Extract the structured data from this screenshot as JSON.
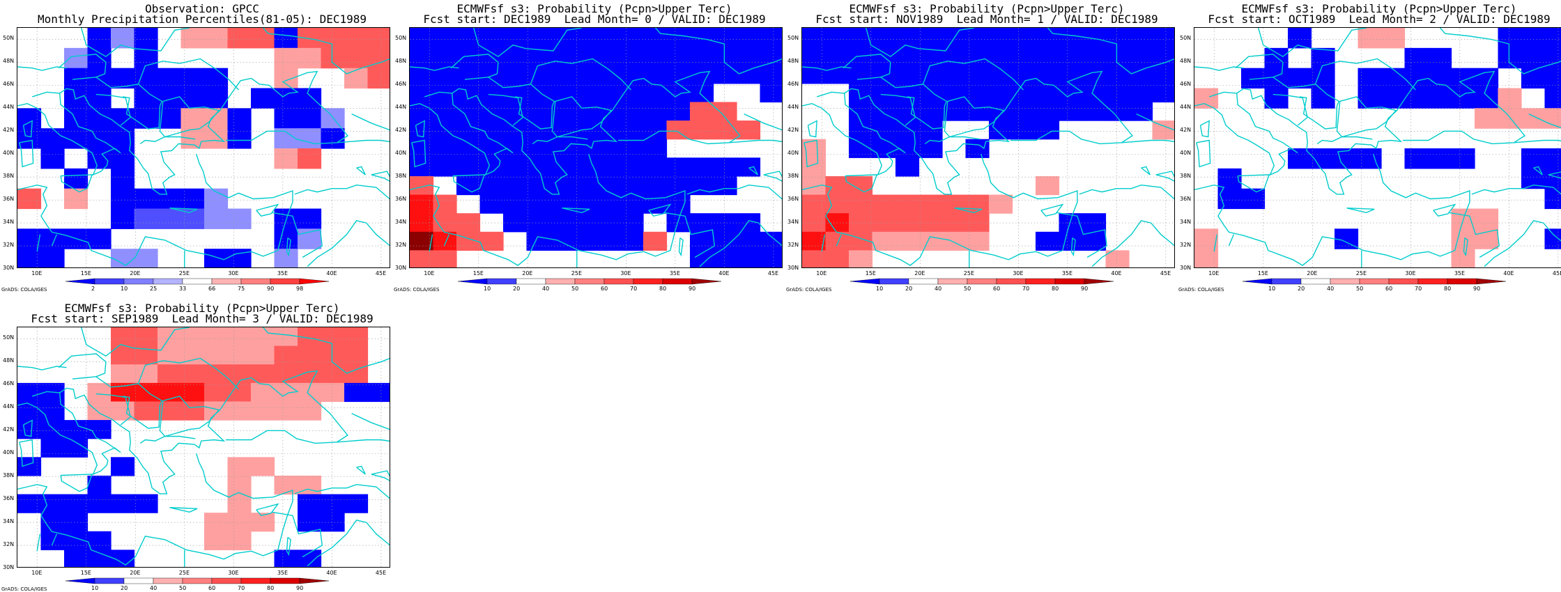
{
  "panels": [
    {
      "title1": "Observation: GPCC",
      "title2": "Monthly Precipitation Percentiles(81-05): DEC1989",
      "colorbar_labels": [
        "2",
        "10",
        "25",
        "33",
        "66",
        "75",
        "90",
        "98"
      ],
      "colorbar_colors": [
        "#0000ff",
        "#4040ff",
        "#8080ff",
        "#b4b4ff",
        "#ffffff",
        "#ffb4b4",
        "#ff8080",
        "#ff4040",
        "#ff0000"
      ]
    },
    {
      "title1": "ECMWFsf s3: Probability (Pcpn>Upper Terc)",
      "title2": "Fcst start: DEC1989  Lead Month= 0 / VALID: DEC1989",
      "colorbar_labels": [
        "10",
        "20",
        "40",
        "50",
        "60",
        "70",
        "80",
        "90"
      ],
      "colorbar_colors": [
        "#0000ff",
        "#4040ff",
        "#ffffff",
        "#ffb0b0",
        "#ff8080",
        "#ff5050",
        "#ff2020",
        "#dd0000",
        "#a00000"
      ]
    },
    {
      "title1": "ECMWFsf s3: Probability (Pcpn>Upper Terc)",
      "title2": "Fcst start: NOV1989  Lead Month= 1 / VALID: DEC1989",
      "colorbar_labels": [
        "10",
        "20",
        "40",
        "50",
        "60",
        "70",
        "80",
        "90"
      ],
      "colorbar_colors": [
        "#0000ff",
        "#4040ff",
        "#ffffff",
        "#ffb0b0",
        "#ff8080",
        "#ff5050",
        "#ff2020",
        "#dd0000",
        "#a00000"
      ]
    },
    {
      "title1": "ECMWFsf s3: Probability (Pcpn>Upper Terc)",
      "title2": "Fcst start: OCT1989  Lead Month= 2 / VALID: DEC1989",
      "colorbar_labels": [
        "10",
        "20",
        "40",
        "50",
        "60",
        "70",
        "80",
        "90"
      ],
      "colorbar_colors": [
        "#0000ff",
        "#4040ff",
        "#ffffff",
        "#ffb0b0",
        "#ff8080",
        "#ff5050",
        "#ff2020",
        "#dd0000",
        "#a00000"
      ]
    },
    {
      "title1": "ECMWFsf s3: Probability (Pcpn>Upper Terc)",
      "title2": "Fcst start: SEP1989  Lead Month= 3 / VALID: DEC1989",
      "colorbar_labels": [
        "10",
        "20",
        "40",
        "50",
        "60",
        "70",
        "80",
        "90"
      ],
      "colorbar_colors": [
        "#0000ff",
        "#4040ff",
        "#ffffff",
        "#ffb0b0",
        "#ff8080",
        "#ff5050",
        "#ff2020",
        "#dd0000",
        "#a00000"
      ]
    }
  ],
  "lat_labels": [
    "50N",
    "48N",
    "46N",
    "44N",
    "42N",
    "40N",
    "38N",
    "36N",
    "34N",
    "32N",
    "30N"
  ],
  "lon_labels": [
    "10E",
    "15E",
    "20E",
    "25E",
    "30E",
    "35E",
    "40E",
    "45E"
  ],
  "credit": "GrADS: COLA/IGES",
  "colors": {
    "coast": "#00cccc",
    "grid": "#999999"
  },
  "grids": [
    [
      "W W W B L B W P P R R B R R R R",
      "W W L B W B W W W W W P P R R R",
      "W W B B B B B B B W W P W W P R",
      "W W B B W B B B B W B B B W W W",
      "B W B B B B B P P B W B B L W W",
      "B B B B B W W P P B W L L B W W",
      "W B W B B W W W W W W P R W W W",
      "W W B W B W W W W W W W W W W W",
      "R W P W B B B B L W W W W W W W",
      "W W W W B M M M L L W B B W W W",
      "B B B B W W W W W W W B L W W W",
      "B B W W L L W W B B W L W W W W"
    ],
    [
      "B B B B B B B B B B B B B B B B",
      "B B B B B B B B B B B B B B B B",
      "B B B B B B B B B B B B B B B B",
      "B B B B B B B B B B B B B W W B",
      "B B B B B B B B B B B B R R W W",
      "B B B B B B B B B B B R R R R W",
      "B B B B B B B B B B B W W W W W",
      "B B B B B B B B B B B B B B B W",
      "R W B B B B B B B B B B B B W W",
      "D R W B B B B B B B B B W W W W",
      "D R R W B B B B B B W B B B B W",
      "N D R R W B B B B B R W B B B B",
      "R R W W W W W W W W W W B B B B"
    ],
    [
      "B B B B B B B B B B B B B B B B",
      "B B B B B B B B B B B B B B B B",
      "B B B B B B B B B B B B B B B B",
      "W W B B B B B B B B B B B B B B",
      "W W B B B B B B B B B B B B B W",
      "W W B B B B W W B B B W W W W P",
      "P W B B B B W B W W W W W W W W",
      "P W W W B W W W W W W W W W W W",
      "P R R W W W W W W W P W W W W W",
      "R R R R R R R R P W W W W W W W",
      "R D R R R R R R W W W B B W W W",
      "D R R P P P P P W W B B B W W W",
      "R R P W W W W W W W W W W P W W"
    ],
    [
      "W W W W B W W P P W W W W B B B",
      "W W W B W B W W W B B W W B B B",
      "W W B B B B W B B B B B B W B B",
      "P W W B W B W B B B B B B P W B",
      "W W W W W W W W W W W W P P P P",
      "W W W W W W W W W W W W W W W W",
      "W W W W B B B B W B B B W W B B",
      "W B W W W W W W W W W W W W B B",
      "W B B W W W W W W W W W W W W B",
      "W W W W W W W W W W W P P W W W",
      "P W W W W W B W W W W P P W W B",
      "P W W W W W W W W W W P W W W W"
    ],
    [
      "W W W W R R P P P P P P R R R W",
      "W W W W R R P P P P P R R R R W",
      "W W W W P P R R R R R R R R R W",
      "B B W P D D D D R R P P P P B B",
      "B B W P P R R R P P P P P W W W",
      "B B B B W W W W W W W W W W W W",
      "W B B W W W W W W W W W W W W W",
      "B W W W B W W W W P P W W W W W",
      "W W W B W W W W W P W P P W W W",
      "B B B B B B W W W P W W B B B W",
      "W B B W W W W W P P P W B B W W",
      "W B B B W W W W P P W W W W W W",
      "W W B B B W W W W W W B B W W W"
    ]
  ],
  "palette": {
    "W": "#ffffff",
    "B": "#0000ff",
    "M": "#4f4fff",
    "L": "#8f8fff",
    "P": "#ffa0a0",
    "R": "#ff5a5a",
    "D": "#ff1010",
    "N": "#8b0000"
  }
}
